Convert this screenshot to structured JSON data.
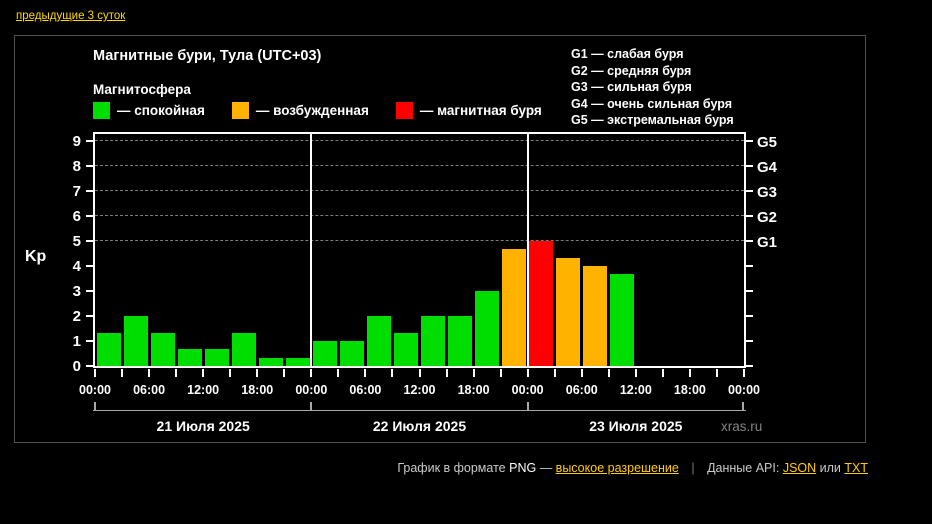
{
  "page": {
    "prev_link": "предыдущие 3 суток"
  },
  "panel": {
    "title": "Магнитные бури, Тула (UTC+03)",
    "subtitle": "Магнитосфера",
    "legend": [
      {
        "name": "quiet",
        "label": "— спокойная",
        "color": "#00dd00"
      },
      {
        "name": "excited",
        "label": "— возбужденная",
        "color": "#ffb300"
      },
      {
        "name": "storm",
        "label": "— магнитная буря",
        "color": "#ff0000"
      }
    ],
    "g_legend": [
      "G1 — слабая буря",
      "G2 — средняя буря",
      "G3 — сильная буря",
      "G4 — очень сильная буря",
      "G5 — экстремальная буря"
    ],
    "watermark": "xras.ru"
  },
  "chart_data": {
    "type": "bar",
    "title": "Магнитные бури, Тула (UTC+03)",
    "ylabel": "Kp",
    "ylim": [
      0,
      9.4
    ],
    "yticks": [
      0,
      1,
      2,
      3,
      4,
      5,
      6,
      7,
      8,
      9
    ],
    "gridlines_at": [
      5,
      6,
      7,
      8,
      9
    ],
    "grid": "dashed horizontal at G-levels only",
    "legend_position": "top-left and top-right",
    "g_levels": [
      {
        "label": "G1",
        "kp": 5
      },
      {
        "label": "G2",
        "kp": 6
      },
      {
        "label": "G3",
        "kp": 7
      },
      {
        "label": "G4",
        "kp": 8
      },
      {
        "label": "G5",
        "kp": 9
      }
    ],
    "bar_interval_hours": 3,
    "x_tick_labels": [
      "00:00",
      "06:00",
      "12:00",
      "18:00",
      "00:00",
      "06:00",
      "12:00",
      "18:00",
      "00:00",
      "06:00",
      "12:00",
      "18:00",
      "00:00"
    ],
    "days": [
      {
        "label": "21 Июля 2025",
        "values": [
          1.33,
          2.0,
          1.33,
          0.67,
          0.67,
          1.33,
          0.33,
          0.33
        ],
        "colors": [
          "green",
          "green",
          "green",
          "green",
          "green",
          "green",
          "green",
          "green"
        ]
      },
      {
        "label": "22 Июля 2025",
        "values": [
          1.0,
          1.0,
          2.0,
          1.33,
          2.0,
          2.0,
          3.0,
          4.67
        ],
        "colors": [
          "green",
          "green",
          "green",
          "green",
          "green",
          "green",
          "green",
          "orange"
        ]
      },
      {
        "label": "23 Июля 2025",
        "values": [
          5.0,
          4.33,
          4.0,
          3.67,
          null,
          null,
          null,
          null
        ],
        "colors": [
          "red",
          "orange",
          "orange",
          "green",
          null,
          null,
          null,
          null
        ]
      }
    ],
    "colors": {
      "green": "#00dd00",
      "orange": "#ffb300",
      "red": "#ff0000"
    }
  },
  "footer": {
    "text_before": "График в формате",
    "format_name": "PNG",
    "dash": "—",
    "hi_res_link": "высокое разрешение",
    "separator": "|",
    "api_text": "Данные API:",
    "json_link": "JSON",
    "or_text": "или",
    "txt_link": "TXT"
  }
}
